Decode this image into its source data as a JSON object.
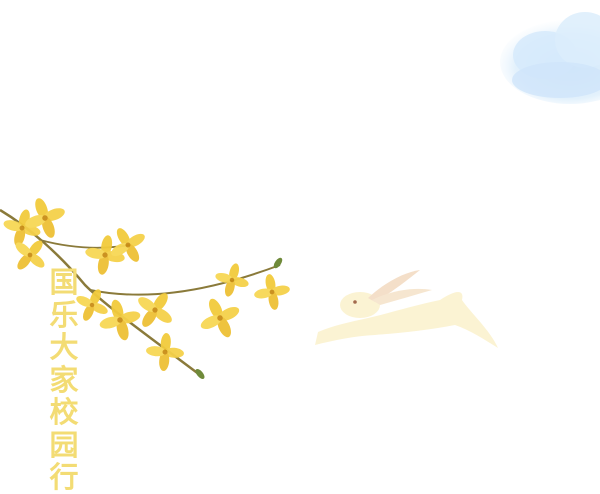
{
  "title": {
    "text": "国乐大家校园行"
  },
  "colors": {
    "title": "#f3dc74",
    "petal": "#f0c93a",
    "petal_dark": "#d9a21f",
    "branch": "#8a7a3a",
    "rabbit": "#fbf2cf",
    "rabbit_ear": "#f3dcc4",
    "cloud": "#d8ecfb"
  },
  "icons": {
    "cloud": "cloud-icon",
    "flowers": "forsythia-branch-icon",
    "rabbit": "rabbit-icon"
  }
}
